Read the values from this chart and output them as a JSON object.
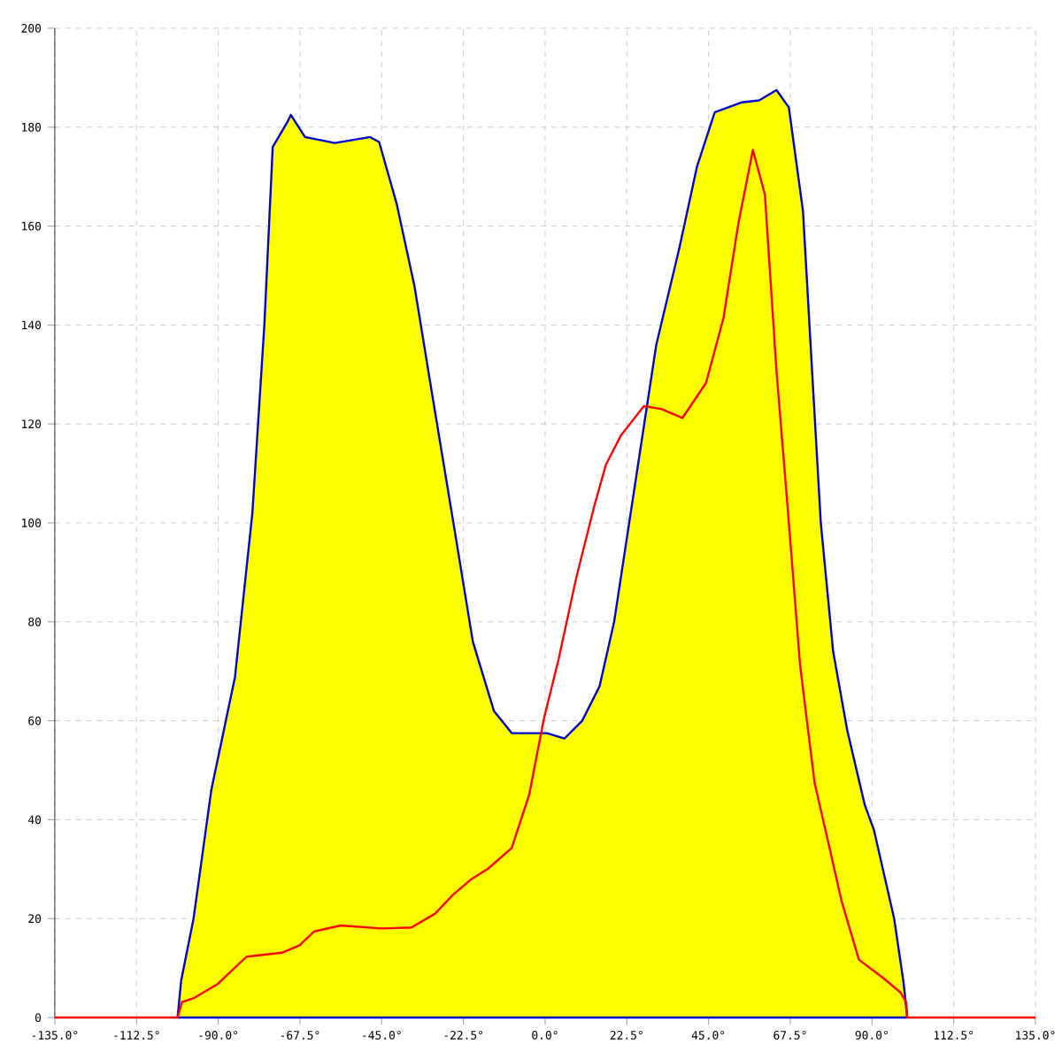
{
  "chart_data": {
    "type": "area",
    "xlim": [
      -135,
      135
    ],
    "ylim": [
      0,
      200
    ],
    "xticks": [
      {
        "value": -135,
        "label": "-135.0°"
      },
      {
        "value": -112.5,
        "label": "-112.5°"
      },
      {
        "value": -90,
        "label": "-90.0°"
      },
      {
        "value": -67.5,
        "label": "-67.5°"
      },
      {
        "value": -45,
        "label": "-45.0°"
      },
      {
        "value": -22.5,
        "label": "-22.5°"
      },
      {
        "value": 0,
        "label": "0.0°"
      },
      {
        "value": 22.5,
        "label": "22.5°"
      },
      {
        "value": 45,
        "label": "45.0°"
      },
      {
        "value": 67.5,
        "label": "67.5°"
      },
      {
        "value": 90,
        "label": "90.0°"
      },
      {
        "value": 112.5,
        "label": "112.5°"
      },
      {
        "value": 135,
        "label": "135.0°"
      }
    ],
    "yticks": [
      0,
      20,
      40,
      60,
      80,
      100,
      120,
      140,
      160,
      180,
      200
    ],
    "grid": true,
    "series": [
      {
        "color": "#ffff00",
        "x": [
          -101.2,
          -100.2,
          -96.8,
          -91.9,
          -85.4,
          -80.6,
          -77.3,
          -75,
          -71,
          -70,
          -66.1,
          -57.9,
          -48.2,
          -45.7,
          -40.9,
          -36,
          -31.1,
          -24.8,
          -19.9,
          -14.1,
          -9.2,
          -4.4,
          0.5,
          5.3,
          10.2,
          15,
          19,
          24.8,
          30.6,
          37,
          41.8,
          46.7,
          54,
          58.9,
          63.7,
          67.1,
          71,
          73.4,
          75.9,
          79.3,
          83.2,
          88,
          90.5,
          96.1,
          98.7,
          99.7
        ],
        "values": [
          0,
          7.5,
          20,
          46,
          68.8,
          102,
          140,
          176,
          181,
          182.5,
          178,
          176.8,
          178,
          177,
          164.6,
          148,
          126,
          98,
          76,
          62,
          57.5,
          57.5,
          57.5,
          56.4,
          60,
          67,
          80,
          108,
          136,
          155.7,
          172,
          183,
          185,
          185.4,
          187.5,
          184,
          163,
          132,
          100,
          74,
          58,
          43,
          38,
          20,
          7,
          0
        ]
      },
      {
        "type": "line",
        "color": "#ff0000",
        "x": [
          -135,
          -101.2,
          -100,
          -96.8,
          -90.3,
          -82.2,
          -72.5,
          -67.6,
          -63.6,
          -56.3,
          -44.9,
          -36.8,
          -30.3,
          -25.4,
          -20.6,
          -15.7,
          -9.2,
          -4.4,
          -0.3,
          3.7,
          8.6,
          13.5,
          16.7,
          20.8,
          27.2,
          32.1,
          37.8,
          44.3,
          49.1,
          53.2,
          57.2,
          60.5,
          63.7,
          67,
          70.2,
          74.2,
          78.3,
          81.6,
          86.4,
          92.9,
          97.8,
          99.4,
          99.7,
          135
        ],
        "values": [
          0,
          0,
          3.1,
          3.9,
          6.7,
          12.3,
          13.1,
          14.6,
          17.4,
          18.6,
          18,
          18.2,
          21,
          24.8,
          27.8,
          30.1,
          34.3,
          45,
          60.5,
          72.4,
          89,
          103.3,
          111.7,
          117.6,
          123.6,
          123,
          121.2,
          128.3,
          141.4,
          160.5,
          175.4,
          166.4,
          130.7,
          101,
          71.2,
          47.4,
          34.3,
          23.6,
          11.7,
          8.1,
          5.1,
          3.1,
          0,
          0
        ]
      }
    ]
  }
}
